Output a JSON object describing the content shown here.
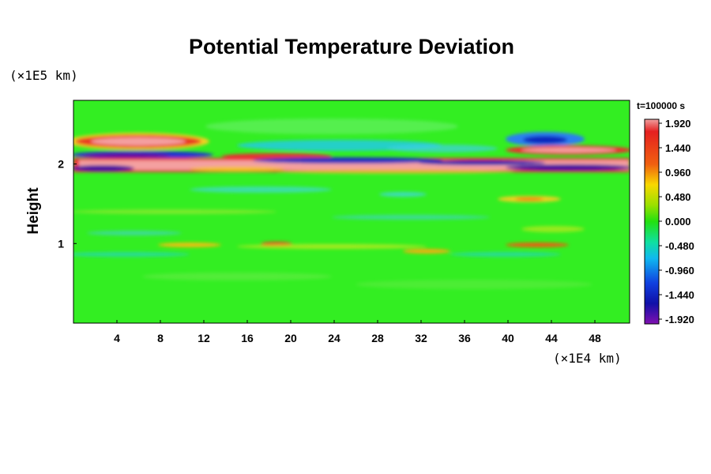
{
  "chart_data": {
    "type": "heatmap",
    "title": "Potential Temperature Deviation",
    "ylabel": "Height",
    "xlabel": "",
    "x_unit": "(×1E4 km)",
    "y_unit": "(×1E5 km)",
    "x_ticks": [
      4,
      8,
      12,
      16,
      20,
      24,
      28,
      32,
      36,
      40,
      44,
      48
    ],
    "y_ticks": [
      1,
      2
    ],
    "xlim": [
      0,
      51.2
    ],
    "ylim": [
      0,
      2.8
    ],
    "time_label": "t=100000 s",
    "colorbar": {
      "ticks": [
        "1.920",
        "1.440",
        "0.960",
        "0.480",
        "0.000",
        "-0.480",
        "-0.960",
        "-1.440",
        "-1.920"
      ],
      "range": [
        -1.92,
        1.92
      ]
    },
    "features": [
      {
        "x": 5,
        "y": 2.28,
        "value": 1.92
      },
      {
        "x": 9,
        "y": 2.28,
        "value": 1.7
      },
      {
        "x": 44,
        "y": 2.3,
        "value": -1.92
      },
      {
        "x": 44,
        "y": 2.17,
        "value": 1.92
      },
      {
        "x": 24,
        "y": 2.0,
        "value": 1.92
      },
      {
        "x": 12,
        "y": 2.06,
        "value": -1.92
      },
      {
        "x": 42,
        "y": 1.55,
        "value": 0.96
      },
      {
        "x": 18,
        "y": 0.95,
        "value": 1.44
      }
    ]
  }
}
